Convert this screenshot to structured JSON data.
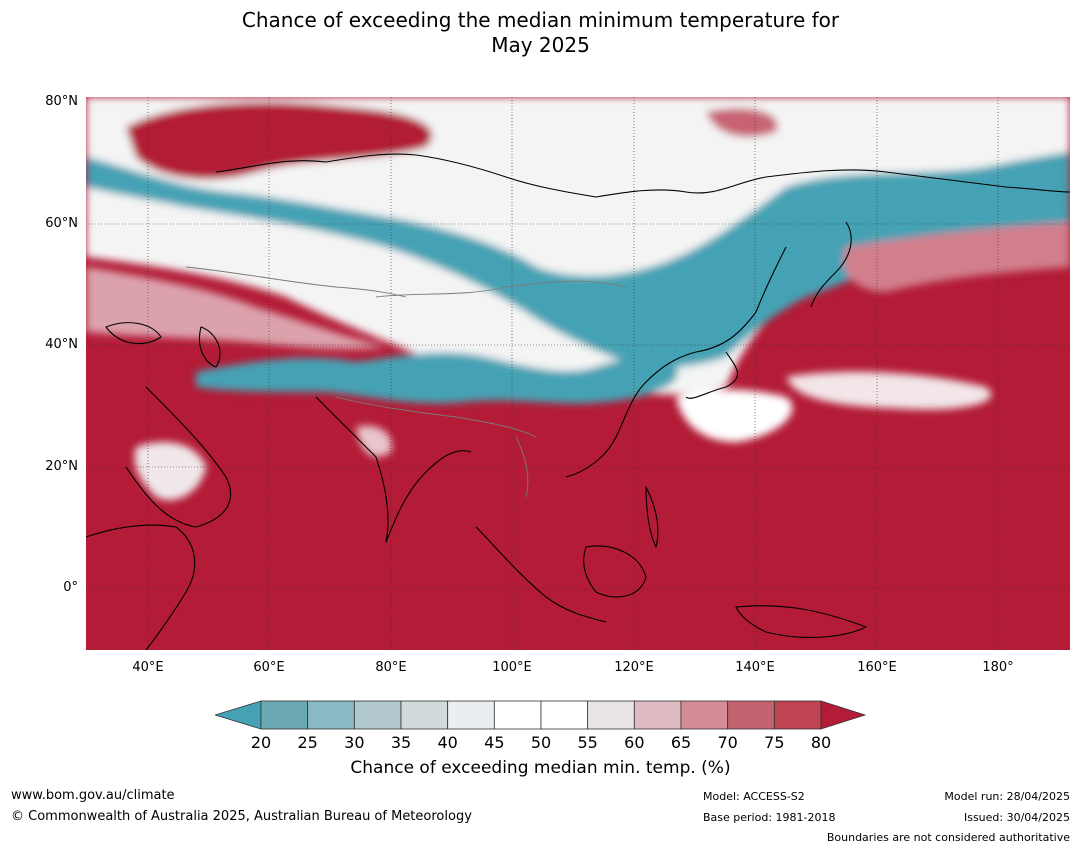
{
  "title": {
    "line1": "Chance of exceeding the median minimum temperature for",
    "line2": "May 2025"
  },
  "map": {
    "lat_labels": [
      "80°N",
      "60°N",
      "40°N",
      "20°N",
      "0°"
    ],
    "lon_labels": [
      "40°E",
      "60°E",
      "80°E",
      "100°E",
      "120°E",
      "140°E",
      "160°E",
      "180°"
    ],
    "colors": {
      "below": "#45a2b4",
      "neutral": "#ffffff",
      "above": "#b31b36",
      "coast": "#000000",
      "border": "#7a7a7a"
    }
  },
  "colorbar": {
    "ticks": [
      "20",
      "25",
      "30",
      "35",
      "40",
      "45",
      "50",
      "55",
      "60",
      "65",
      "70",
      "75",
      "80"
    ],
    "bin_colors": [
      "#6aa9b4",
      "#8ab9c4",
      "#b0c8cd",
      "#d3dadb",
      "#e9eff1",
      "#ffffff",
      "#ffffff",
      "#e8e4e6",
      "#dfbcc1",
      "#d48c97",
      "#c46270",
      "#be4452"
    ],
    "under_color": "#45a2b4",
    "over_color": "#b31b36",
    "label": "Chance of exceeding median min. temp. (%)"
  },
  "footer": {
    "website": "www.bom.gov.au/climate",
    "copyright": "© Commonwealth of Australia 2025, Australian Bureau of Meteorology",
    "model": "Model: ACCESS-S2",
    "base_period": "Base period: 1981-2018",
    "model_run": "Model run: 28/04/2025",
    "issued": "Issued: 30/04/2025",
    "disclaimer": "Boundaries are not considered authoritative"
  }
}
